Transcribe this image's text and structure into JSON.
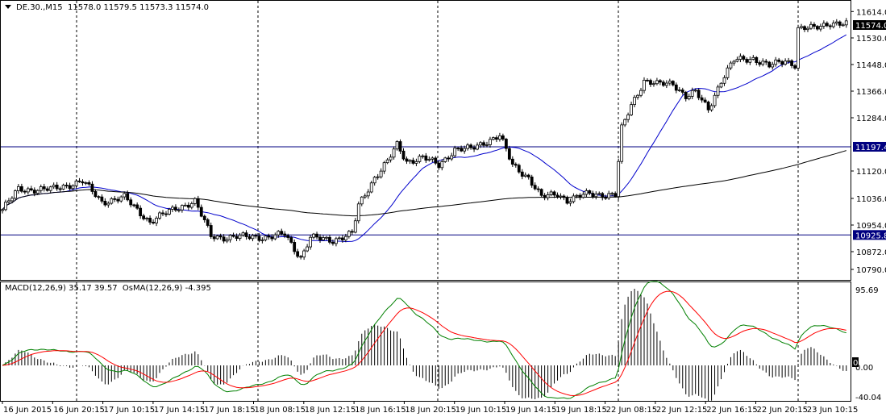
{
  "header": {
    "symbol": "DE.30.,M15",
    "open": "11578.0",
    "high": "11579.5",
    "low": "11573.3",
    "close": "11574.0"
  },
  "indicator_label": {
    "macd": "MACD(12,26,9) 35.17 39.57",
    "osma": "OsMA(12,26,9) -4.395"
  },
  "chart_data": [
    {
      "type": "candlestick",
      "timeframe": "M15",
      "ylim": [
        10790.0,
        11614.0
      ],
      "y_ticks": [
        "11614.0",
        "11530.0",
        "11448.0",
        "11366.0",
        "11284.0",
        "11120.0",
        "11036.0",
        "10954.0",
        "10872.0",
        "10790.0"
      ],
      "current_price": "11574.0",
      "horizontal_lines": [
        "11197.4",
        "10925.8"
      ],
      "x_ticks": [
        "16 Jun 2015",
        "16 Jun 20:15",
        "17 Jun 10:15",
        "17 Jun 14:15",
        "17 Jun 18:15",
        "18 Jun 08:15",
        "18 Jun 12:15",
        "18 Jun 16:15",
        "18 Jun 20:15",
        "19 Jun 10:15",
        "19 Jun 14:15",
        "19 Jun 18:15",
        "22 Jun 08:15",
        "22 Jun 12:15",
        "22 Jun 16:15",
        "22 Jun 20:15",
        "23 Jun 10:15"
      ],
      "bar_count": 264,
      "approx_close_by_bar": [
        [
          0,
          11004
        ],
        [
          5,
          11066
        ],
        [
          15,
          11066
        ],
        [
          25,
          11091
        ],
        [
          31,
          11028
        ],
        [
          38,
          11041
        ],
        [
          46,
          10966
        ],
        [
          54,
          11009
        ],
        [
          60,
          11028
        ],
        [
          65,
          10924
        ],
        [
          70,
          10917
        ],
        [
          78,
          10922
        ],
        [
          83,
          10917
        ],
        [
          88,
          10929
        ],
        [
          93,
          10855
        ],
        [
          96,
          10917
        ],
        [
          103,
          10910
        ],
        [
          109,
          10929
        ],
        [
          111,
          11016
        ],
        [
          116,
          11103
        ],
        [
          120,
          11152
        ],
        [
          123,
          11202
        ],
        [
          126,
          11152
        ],
        [
          131,
          11165
        ],
        [
          136,
          11140
        ],
        [
          141,
          11190
        ],
        [
          146,
          11190
        ],
        [
          151,
          11215
        ],
        [
          155,
          11232
        ],
        [
          159,
          11140
        ],
        [
          164,
          11103
        ],
        [
          168,
          11041
        ],
        [
          173,
          11053
        ],
        [
          176,
          11033
        ],
        [
          183,
          11053
        ],
        [
          191,
          11048
        ],
        [
          193,
          11252
        ],
        [
          196,
          11327
        ],
        [
          200,
          11401
        ],
        [
          204,
          11389
        ],
        [
          209,
          11394
        ],
        [
          213,
          11352
        ],
        [
          216,
          11364
        ],
        [
          220,
          11314
        ],
        [
          224,
          11401
        ],
        [
          228,
          11463
        ],
        [
          234,
          11470
        ],
        [
          239,
          11446
        ],
        [
          244,
          11463
        ],
        [
          247,
          11451
        ],
        [
          248,
          11562
        ],
        [
          253,
          11562
        ],
        [
          258,
          11580
        ],
        [
          263,
          11574
        ]
      ],
      "moving_averages": [
        {
          "color": "#0000cc",
          "period": 21
        },
        {
          "color": "#000000",
          "period": 200
        }
      ],
      "colors": {
        "candle": "#000000",
        "separator": "#000000",
        "hline": "#000080"
      }
    },
    {
      "type": "macd",
      "ylim": [
        -40.04,
        95.69
      ],
      "y_ticks": [
        "95.69",
        "0.00",
        "-40.04"
      ],
      "zero_marker": "0",
      "params": [
        12,
        26,
        9
      ],
      "last_values": {
        "macd": 35.17,
        "signal": 39.57,
        "osma": -4.395
      },
      "colors": {
        "histogram": "#000000",
        "macd": "#008000",
        "signal": "#ff0000"
      }
    }
  ]
}
